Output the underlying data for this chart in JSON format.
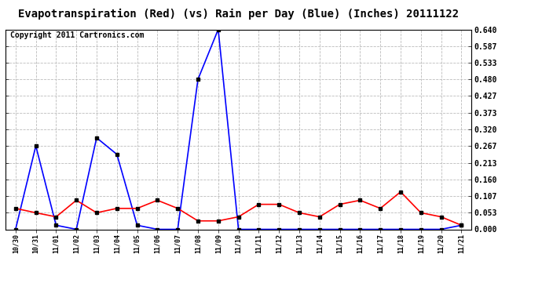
{
  "title": "Evapotranspiration (Red) (vs) Rain per Day (Blue) (Inches) 20111122",
  "copyright_text": "Copyright 2011 Cartronics.com",
  "x_labels": [
    "10/30",
    "10/31",
    "11/01",
    "11/02",
    "11/03",
    "11/04",
    "11/05",
    "11/06",
    "11/07",
    "11/08",
    "11/09",
    "11/10",
    "11/11",
    "11/12",
    "11/13",
    "11/14",
    "11/15",
    "11/16",
    "11/17",
    "11/18",
    "11/19",
    "11/20",
    "11/21"
  ],
  "blue_values": [
    0.0,
    0.267,
    0.013,
    0.0,
    0.293,
    0.24,
    0.013,
    0.0,
    0.0,
    0.48,
    0.64,
    0.0,
    0.0,
    0.0,
    0.0,
    0.0,
    0.0,
    0.0,
    0.0,
    0.0,
    0.0,
    0.0,
    0.013
  ],
  "red_values": [
    0.067,
    0.053,
    0.04,
    0.093,
    0.053,
    0.067,
    0.067,
    0.093,
    0.067,
    0.027,
    0.027,
    0.04,
    0.08,
    0.08,
    0.053,
    0.04,
    0.08,
    0.093,
    0.067,
    0.12,
    0.053,
    0.04,
    0.013
  ],
  "blue_color": "#0000ff",
  "red_color": "#ff0000",
  "background_color": "#ffffff",
  "grid_color": "#bbbbbb",
  "title_fontsize": 10,
  "copyright_fontsize": 7,
  "ylim": [
    0.0,
    0.64
  ],
  "yticks": [
    0.0,
    0.053,
    0.107,
    0.16,
    0.213,
    0.267,
    0.32,
    0.373,
    0.427,
    0.48,
    0.533,
    0.587,
    0.64
  ],
  "marker": "s",
  "marker_size": 2.5,
  "line_width": 1.2
}
